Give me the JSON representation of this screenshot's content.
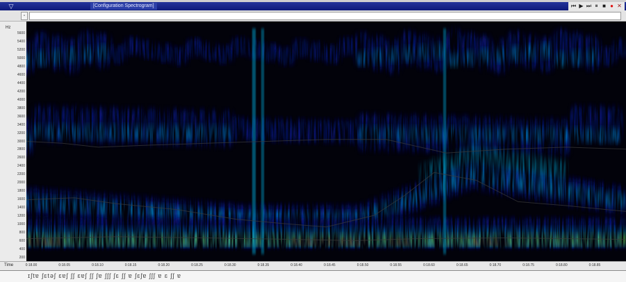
{
  "window": {
    "title": "[Configuration Spectrogram]",
    "menu_icon": "▽"
  },
  "transport": [
    {
      "name": "skip-start-icon",
      "glyph": "⏮"
    },
    {
      "name": "play-icon",
      "glyph": "▶"
    },
    {
      "name": "step-icon",
      "glyph": "⏭"
    },
    {
      "name": "pause-icon",
      "glyph": "⏸"
    },
    {
      "name": "stop-icon",
      "glyph": "■"
    },
    {
      "name": "record-icon",
      "glyph": "●"
    },
    {
      "name": "close-icon",
      "glyph": "✕"
    }
  ],
  "toolbar": {
    "small_button_glyph": "▫"
  },
  "yaxis": {
    "unit": "Hz",
    "ticks": [
      "5600",
      "5400",
      "5200",
      "5000",
      "4800",
      "4600",
      "4400",
      "4200",
      "4000",
      "3800",
      "3600",
      "3400",
      "3200",
      "3000",
      "2800",
      "2600",
      "2400",
      "2200",
      "2000",
      "1800",
      "1600",
      "1400",
      "1200",
      "1000",
      "800",
      "600",
      "400",
      "200"
    ]
  },
  "xaxis": {
    "unit": "Time",
    "ticks": [
      "0:18.00",
      "0:18.05",
      "0:18.10",
      "0:18.15",
      "0:18.20",
      "0:18.25",
      "0:18.30",
      "0:18.35",
      "0:18.40",
      "0:18.45",
      "0:18.50",
      "0:18.55",
      "0:18.60",
      "0:18.65",
      "0:18.70",
      "0:18.75",
      "0:18.80",
      "0:18.85"
    ]
  },
  "tier": {
    "text": "ɪʃtɐ  ʃɛtəʃ  ɛɐʃ  ʃʃ  ɛɐʃ  ʃʃ  ʃɐ  ʃʃʃ  ʃɛ  ʃʃ  ɐ  ʃɛʃɐ  ʃʃʃ  ɐ  ɛ  ʃʃ  ɐ"
  },
  "colors": {
    "background": "#02020a",
    "low_energy": "#0a1aa0",
    "mid_energy": "#00c8ff",
    "high_energy": "#9aff3a",
    "peak_energy": "#ff2a10",
    "title_bar": "#1a2a8a"
  },
  "spectrogram": {
    "formants": [
      {
        "points": [
          [
            0,
            2900
          ],
          [
            0.06,
            2850
          ],
          [
            0.12,
            2750
          ],
          [
            0.2,
            2800
          ],
          [
            0.3,
            2850
          ],
          [
            0.4,
            2900
          ],
          [
            0.5,
            2950
          ],
          [
            0.6,
            2950
          ],
          [
            0.7,
            2600
          ],
          [
            0.8,
            2700
          ],
          [
            0.9,
            2750
          ],
          [
            1,
            2700
          ]
        ]
      },
      {
        "points": [
          [
            0,
            1400
          ],
          [
            0.08,
            1450
          ],
          [
            0.15,
            1300
          ],
          [
            0.25,
            1150
          ],
          [
            0.35,
            900
          ],
          [
            0.42,
            800
          ],
          [
            0.5,
            700
          ],
          [
            0.58,
            1000
          ],
          [
            0.63,
            1500
          ],
          [
            0.68,
            2100
          ],
          [
            0.75,
            1900
          ],
          [
            0.82,
            1350
          ],
          [
            0.9,
            1250
          ],
          [
            1,
            1100
          ]
        ]
      },
      {
        "points": [
          [
            0,
            400
          ],
          [
            0.15,
            450
          ],
          [
            0.3,
            420
          ],
          [
            0.45,
            380
          ],
          [
            0.55,
            350
          ],
          [
            0.65,
            400
          ],
          [
            0.8,
            420
          ],
          [
            1,
            380
          ]
        ]
      }
    ]
  }
}
